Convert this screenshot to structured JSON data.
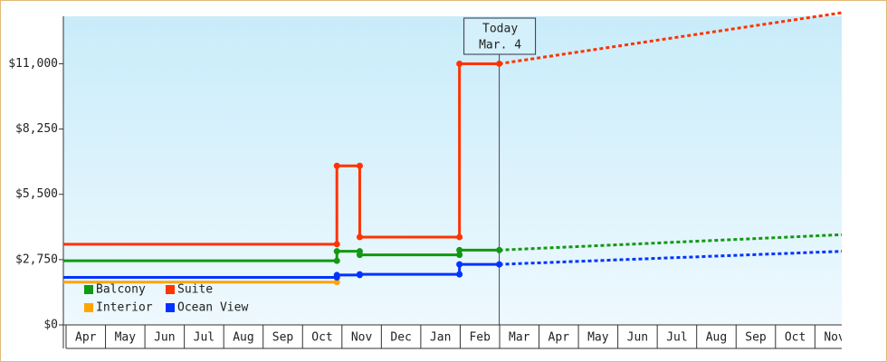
{
  "chart_data": {
    "type": "line",
    "categories": [
      "Apr",
      "May",
      "Jun",
      "Jul",
      "Aug",
      "Sep",
      "Oct",
      "Nov",
      "Dec",
      "Jan",
      "Feb",
      "Mar",
      "Apr",
      "May",
      "Jun",
      "Jul",
      "Aug",
      "Sep",
      "Oct",
      "Nov"
    ],
    "xlim": [
      0,
      19.75
    ],
    "ylim": [
      0,
      13000
    ],
    "yticks": [
      {
        "value": 0,
        "label": "$0"
      },
      {
        "value": 2750,
        "label": "$2,750"
      },
      {
        "value": 5500,
        "label": "$5,500"
      },
      {
        "value": 8250,
        "label": "$8,250"
      },
      {
        "value": 11000,
        "label": "$11,000"
      }
    ],
    "today": {
      "x": 11.06,
      "label": [
        "Today",
        "Mar. 4"
      ]
    },
    "series": [
      {
        "name": "Balcony",
        "color": "#119911",
        "x": [
          0,
          6.94,
          6.94,
          7.52,
          7.52,
          10.05,
          10.05,
          11.06
        ],
        "values": [
          2700,
          2700,
          3100,
          3100,
          2950,
          2950,
          3150,
          3150
        ],
        "forecast": {
          "x": [
            11.06,
            19.75
          ],
          "values": [
            3150,
            3800
          ]
        }
      },
      {
        "name": "Suite",
        "color": "#ff3300",
        "x": [
          0,
          6.94,
          6.94,
          7.52,
          7.52,
          10.05,
          10.05,
          11.06
        ],
        "values": [
          3400,
          3400,
          6700,
          6700,
          3700,
          3700,
          11000,
          11000
        ],
        "forecast": {
          "x": [
            11.06,
            19.75
          ],
          "values": [
            11000,
            13150
          ]
        }
      },
      {
        "name": "Interior",
        "color": "#ffa500",
        "x": [
          0,
          6.94
        ],
        "values": [
          1800,
          1800
        ]
      },
      {
        "name": "Ocean View",
        "color": "#0033ff",
        "x": [
          0,
          6.94,
          6.94,
          7.52,
          7.52,
          10.05,
          10.05,
          11.06
        ],
        "values": [
          2000,
          2000,
          2100,
          2100,
          2130,
          2130,
          2550,
          2550
        ],
        "forecast": {
          "x": [
            11.06,
            19.75
          ],
          "values": [
            2550,
            3100
          ]
        }
      }
    ]
  }
}
